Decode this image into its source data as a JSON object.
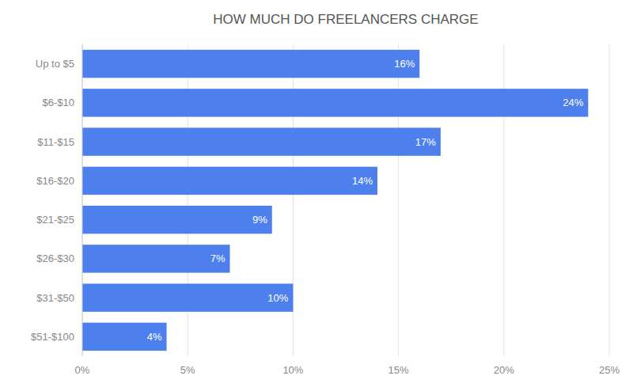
{
  "chart_data": {
    "type": "bar",
    "orientation": "horizontal",
    "title": "HOW MUCH DO FREELANCERS CHARGE",
    "categories": [
      "Up to $5",
      "$6‑$10",
      "$11‑$15",
      "$16‑$20",
      "$21‑$25",
      "$26‑$30",
      "$31‑$50",
      "$51‑$100"
    ],
    "values": [
      16,
      24,
      17,
      14,
      9,
      7,
      10,
      4
    ],
    "value_labels": [
      "16%",
      "24%",
      "17%",
      "14%",
      "9%",
      "7%",
      "10%",
      "4%"
    ],
    "data_labels": true,
    "color": "#4d80ed",
    "xlim": [
      0,
      25
    ],
    "xticks": [
      {
        "value": 0,
        "label": "0%"
      },
      {
        "value": 5,
        "label": "5%"
      },
      {
        "value": 10,
        "label": "10%"
      },
      {
        "value": 15,
        "label": "15%"
      },
      {
        "value": 20,
        "label": "20%"
      },
      {
        "value": 25,
        "label": "25%"
      }
    ],
    "grid": true
  }
}
